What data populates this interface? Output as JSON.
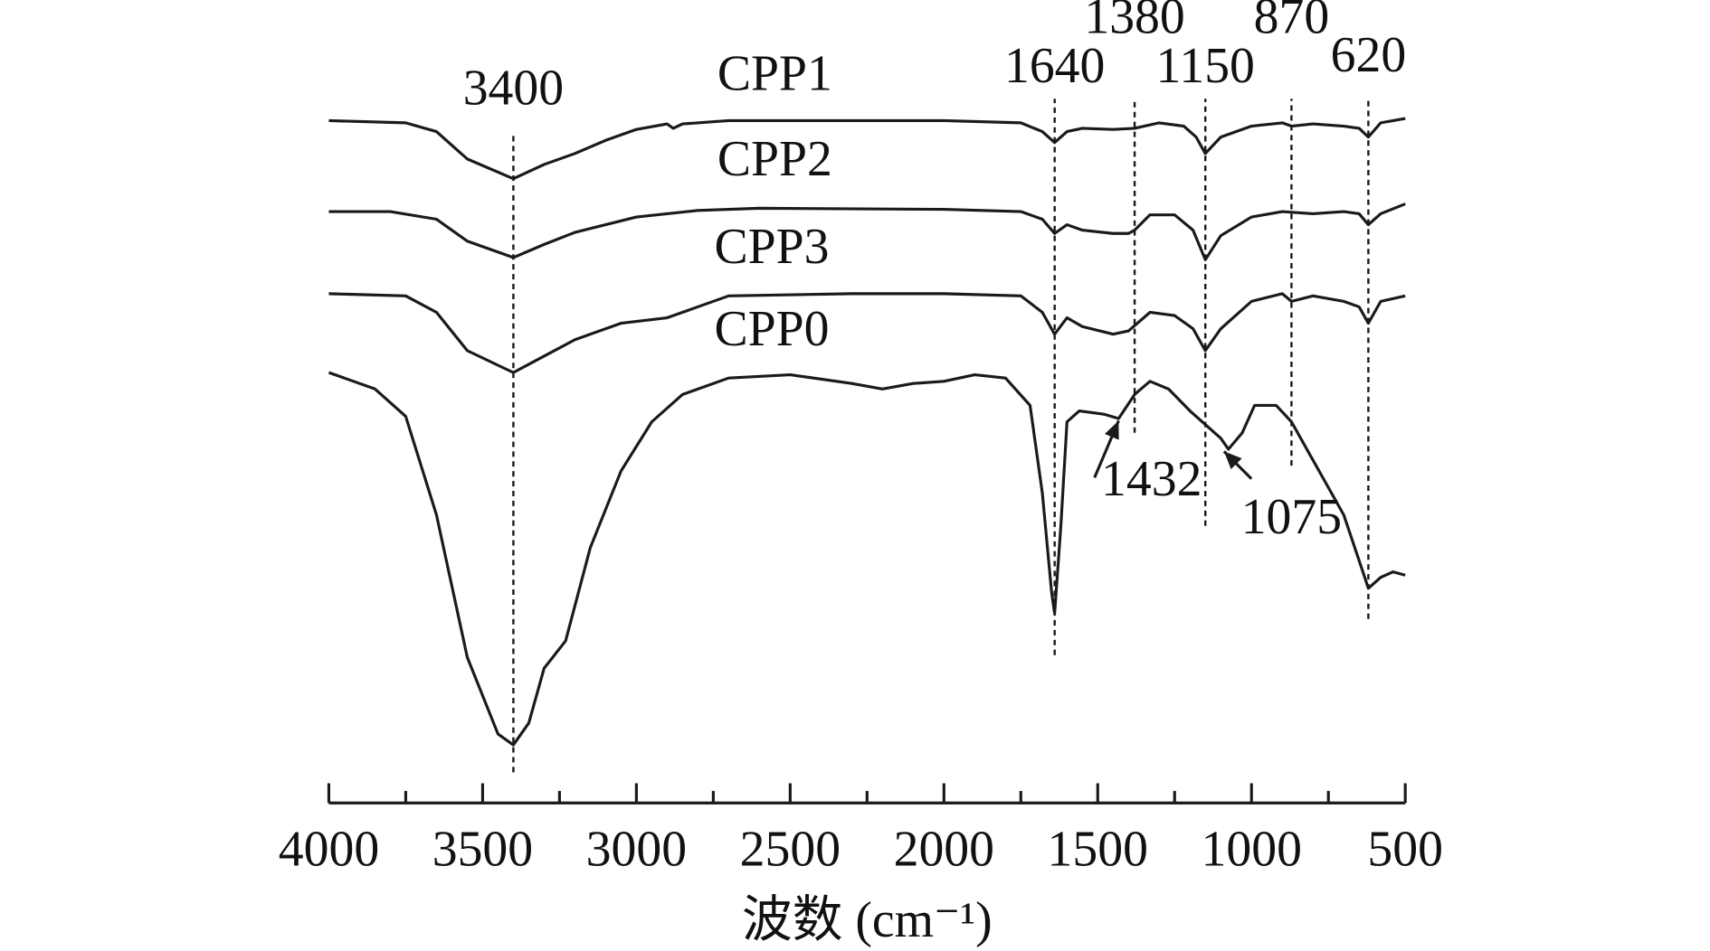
{
  "chart_data": {
    "type": "line",
    "title": "",
    "xlabel": "波数 (cm⁻¹)",
    "ylabel": "",
    "xlim": [
      4000,
      500
    ],
    "ylim": [
      0,
      7.4
    ],
    "y_units": "transmittance (a.u., stacked)",
    "grid": false,
    "xticks": [
      "4000",
      "3500",
      "3000",
      "2500",
      "2000",
      "1500",
      "1000",
      "500"
    ],
    "xtick_values": [
      4000,
      3500,
      3000,
      2500,
      2000,
      1500,
      1000,
      500
    ],
    "series": [
      {
        "name": "CPP1",
        "label_at": [
          2550,
          6.58
        ],
        "points": [
          [
            4000,
            6.3
          ],
          [
            3750,
            6.28
          ],
          [
            3650,
            6.2
          ],
          [
            3550,
            5.95
          ],
          [
            3400,
            5.77
          ],
          [
            3300,
            5.9
          ],
          [
            3200,
            6.0
          ],
          [
            3100,
            6.12
          ],
          [
            3000,
            6.22
          ],
          [
            2900,
            6.27
          ],
          [
            2880,
            6.23
          ],
          [
            2850,
            6.27
          ],
          [
            2700,
            6.3
          ],
          [
            2300,
            6.3
          ],
          [
            2000,
            6.3
          ],
          [
            1750,
            6.28
          ],
          [
            1680,
            6.2
          ],
          [
            1640,
            6.1
          ],
          [
            1600,
            6.2
          ],
          [
            1550,
            6.23
          ],
          [
            1450,
            6.22
          ],
          [
            1380,
            6.23
          ],
          [
            1300,
            6.28
          ],
          [
            1220,
            6.25
          ],
          [
            1180,
            6.15
          ],
          [
            1150,
            6.0
          ],
          [
            1100,
            6.15
          ],
          [
            1000,
            6.25
          ],
          [
            900,
            6.28
          ],
          [
            870,
            6.25
          ],
          [
            800,
            6.27
          ],
          [
            700,
            6.25
          ],
          [
            650,
            6.23
          ],
          [
            620,
            6.15
          ],
          [
            580,
            6.28
          ],
          [
            500,
            6.32
          ]
        ]
      },
      {
        "name": "CPP2",
        "label_at": [
          2550,
          5.8
        ],
        "points": [
          [
            4000,
            5.47
          ],
          [
            3800,
            5.47
          ],
          [
            3650,
            5.4
          ],
          [
            3550,
            5.2
          ],
          [
            3400,
            5.05
          ],
          [
            3300,
            5.17
          ],
          [
            3200,
            5.28
          ],
          [
            3000,
            5.42
          ],
          [
            2800,
            5.48
          ],
          [
            2600,
            5.5
          ],
          [
            2000,
            5.49
          ],
          [
            1750,
            5.47
          ],
          [
            1680,
            5.4
          ],
          [
            1640,
            5.27
          ],
          [
            1600,
            5.35
          ],
          [
            1550,
            5.3
          ],
          [
            1450,
            5.27
          ],
          [
            1400,
            5.27
          ],
          [
            1380,
            5.3
          ],
          [
            1330,
            5.44
          ],
          [
            1250,
            5.44
          ],
          [
            1190,
            5.3
          ],
          [
            1150,
            5.03
          ],
          [
            1100,
            5.25
          ],
          [
            1000,
            5.42
          ],
          [
            900,
            5.47
          ],
          [
            800,
            5.45
          ],
          [
            700,
            5.47
          ],
          [
            650,
            5.45
          ],
          [
            620,
            5.35
          ],
          [
            580,
            5.45
          ],
          [
            500,
            5.54
          ]
        ]
      },
      {
        "name": "CPP3",
        "label_at": [
          2560,
          5.0
        ],
        "points": [
          [
            4000,
            4.72
          ],
          [
            3750,
            4.7
          ],
          [
            3650,
            4.55
          ],
          [
            3550,
            4.2
          ],
          [
            3400,
            4.0
          ],
          [
            3300,
            4.15
          ],
          [
            3200,
            4.3
          ],
          [
            3050,
            4.45
          ],
          [
            2900,
            4.5
          ],
          [
            2700,
            4.7
          ],
          [
            2300,
            4.72
          ],
          [
            2000,
            4.72
          ],
          [
            1750,
            4.7
          ],
          [
            1680,
            4.55
          ],
          [
            1640,
            4.35
          ],
          [
            1600,
            4.5
          ],
          [
            1550,
            4.42
          ],
          [
            1450,
            4.35
          ],
          [
            1400,
            4.38
          ],
          [
            1330,
            4.55
          ],
          [
            1250,
            4.52
          ],
          [
            1190,
            4.4
          ],
          [
            1150,
            4.2
          ],
          [
            1100,
            4.4
          ],
          [
            1000,
            4.65
          ],
          [
            900,
            4.72
          ],
          [
            870,
            4.65
          ],
          [
            800,
            4.7
          ],
          [
            700,
            4.65
          ],
          [
            650,
            4.6
          ],
          [
            620,
            4.45
          ],
          [
            580,
            4.65
          ],
          [
            500,
            4.7
          ]
        ]
      },
      {
        "name": "CPP0",
        "label_at": [
          2560,
          4.25
        ],
        "points": [
          [
            4000,
            4.0
          ],
          [
            3850,
            3.85
          ],
          [
            3750,
            3.6
          ],
          [
            3650,
            2.7
          ],
          [
            3550,
            1.4
          ],
          [
            3450,
            0.7
          ],
          [
            3400,
            0.6
          ],
          [
            3350,
            0.8
          ],
          [
            3300,
            1.3
          ],
          [
            3230,
            1.55
          ],
          [
            3150,
            2.4
          ],
          [
            3050,
            3.1
          ],
          [
            2950,
            3.55
          ],
          [
            2850,
            3.8
          ],
          [
            2700,
            3.95
          ],
          [
            2500,
            3.98
          ],
          [
            2300,
            3.9
          ],
          [
            2200,
            3.85
          ],
          [
            2100,
            3.9
          ],
          [
            2000,
            3.92
          ],
          [
            1900,
            3.98
          ],
          [
            1800,
            3.95
          ],
          [
            1720,
            3.7
          ],
          [
            1680,
            2.9
          ],
          [
            1650,
            2.0
          ],
          [
            1640,
            1.8
          ],
          [
            1620,
            2.6
          ],
          [
            1600,
            3.55
          ],
          [
            1560,
            3.65
          ],
          [
            1480,
            3.62
          ],
          [
            1432,
            3.58
          ],
          [
            1380,
            3.8
          ],
          [
            1330,
            3.92
          ],
          [
            1270,
            3.85
          ],
          [
            1200,
            3.65
          ],
          [
            1100,
            3.4
          ],
          [
            1075,
            3.3
          ],
          [
            1030,
            3.45
          ],
          [
            990,
            3.7
          ],
          [
            920,
            3.7
          ],
          [
            870,
            3.55
          ],
          [
            800,
            3.2
          ],
          [
            700,
            2.7
          ],
          [
            640,
            2.2
          ],
          [
            620,
            2.03
          ],
          [
            580,
            2.13
          ],
          [
            540,
            2.18
          ],
          [
            500,
            2.15
          ]
        ]
      }
    ],
    "annotations": [
      {
        "text": "3400",
        "x": 3400,
        "type": "dashed-line",
        "y_from": 0.35,
        "y_to": 6.2,
        "label_y": 6.45
      },
      {
        "text": "1640",
        "x": 1640,
        "type": "dashed-line",
        "y_from": 1.42,
        "y_to": 6.5,
        "label_y": 6.65
      },
      {
        "text": "1380",
        "x": 1380,
        "type": "dashed-line",
        "y_from": 3.45,
        "y_to": 6.5,
        "label_y": 7.1
      },
      {
        "text": "1150",
        "x": 1150,
        "type": "dashed-line",
        "y_from": 2.6,
        "y_to": 6.5,
        "label_y": 6.65
      },
      {
        "text": "870",
        "x": 870,
        "type": "dashed-line",
        "y_from": 3.15,
        "y_to": 6.5,
        "label_y": 7.1
      },
      {
        "text": "620",
        "x": 620,
        "type": "dashed-line",
        "y_from": 1.75,
        "y_to": 6.5,
        "label_y": 6.75
      },
      {
        "text": "1432",
        "x": 1432,
        "type": "arrow",
        "label_x": 1325,
        "label_y": 2.88
      },
      {
        "text": "1075",
        "x": 1075,
        "type": "arrow",
        "label_x": 870,
        "label_y": 2.53
      }
    ]
  }
}
